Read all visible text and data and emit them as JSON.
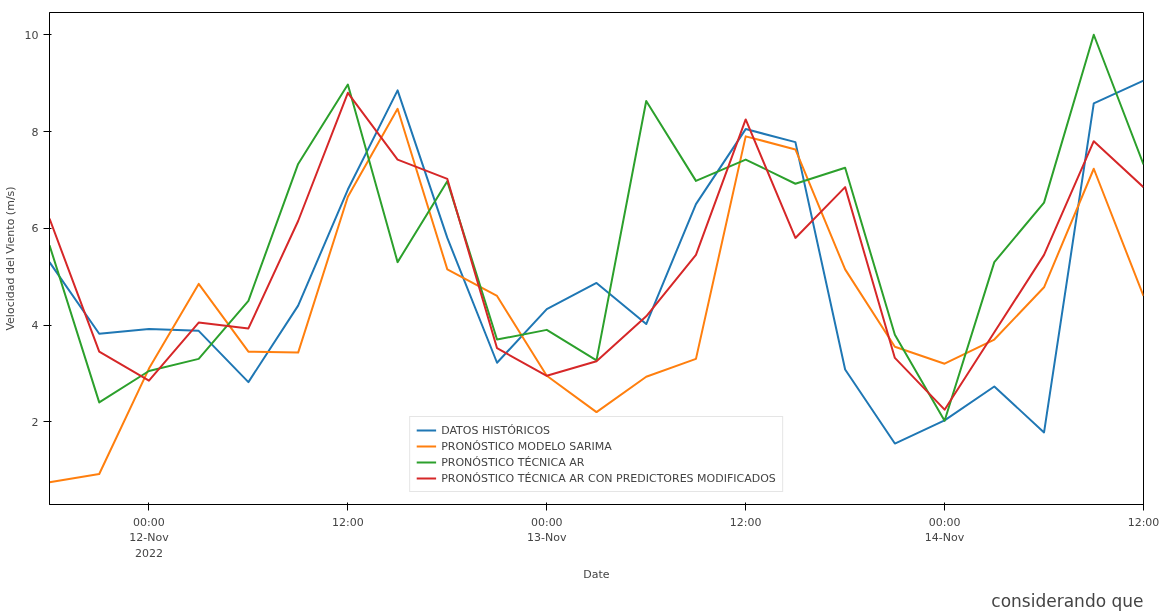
{
  "chart_data": {
    "type": "line",
    "xlabel": "Date",
    "ylabel": "Velocidad del Viento (m/s)",
    "x": [
      "2022-11-11T18:00",
      "2022-11-11T21:00",
      "2022-11-12T00:00",
      "2022-11-12T03:00",
      "2022-11-12T06:00",
      "2022-11-12T09:00",
      "2022-11-12T12:00",
      "2022-11-12T15:00",
      "2022-11-12T18:00",
      "2022-11-12T21:00",
      "2022-11-13T00:00",
      "2022-11-13T03:00",
      "2022-11-13T06:00",
      "2022-11-13T09:00",
      "2022-11-13T12:00",
      "2022-11-13T15:00",
      "2022-11-13T18:00",
      "2022-11-13T21:00",
      "2022-11-14T00:00",
      "2022-11-14T03:00",
      "2022-11-14T06:00",
      "2022-11-14T09:00",
      "2022-11-14T12:00"
    ],
    "series": [
      {
        "name": "DATOS HISTÓRICOS",
        "color": "#1f77b4",
        "values": [
          5.3,
          3.82,
          3.92,
          3.88,
          2.82,
          4.4,
          6.8,
          8.85,
          5.8,
          3.22,
          4.33,
          4.87,
          4.02,
          6.5,
          8.05,
          7.78,
          3.08,
          1.55,
          2.03,
          2.73,
          1.78,
          8.58,
          9.05
        ]
      },
      {
        "name": "PRONÓSTICO MODELO SARIMA",
        "color": "#ff7f0e",
        "values": [
          0.75,
          0.92,
          3.1,
          4.85,
          3.45,
          3.43,
          6.65,
          8.47,
          5.15,
          4.6,
          2.95,
          2.2,
          2.93,
          3.3,
          7.9,
          7.63,
          5.15,
          3.55,
          3.2,
          3.7,
          4.78,
          7.23,
          4.6
        ]
      },
      {
        "name": "PRONÓSTICO TÉCNICA AR",
        "color": "#2ca02c",
        "values": [
          5.65,
          2.4,
          3.05,
          3.3,
          4.5,
          7.33,
          8.97,
          5.3,
          6.97,
          3.7,
          3.9,
          3.27,
          8.63,
          6.98,
          7.42,
          6.92,
          7.25,
          3.8,
          2.02,
          5.3,
          6.53,
          10.0,
          7.32
        ]
      },
      {
        "name": "PRONÓSTICO TÉCNICA AR CON PREDICTORES MODIFICADOS",
        "color": "#d62728",
        "values": [
          6.2,
          3.45,
          2.85,
          4.05,
          3.93,
          6.15,
          8.8,
          7.42,
          7.02,
          3.52,
          2.95,
          3.25,
          4.18,
          5.45,
          8.25,
          5.8,
          6.85,
          3.32,
          2.25,
          3.85,
          5.45,
          7.8,
          6.85
        ]
      }
    ],
    "xlim": [
      "2022-11-11T18:00",
      "2022-11-14T12:00"
    ],
    "xticks": [
      {
        "value": "2022-11-12T00:00",
        "label": "00:00\n12-Nov\n2022"
      },
      {
        "value": "2022-11-12T12:00",
        "label": "12:00"
      },
      {
        "value": "2022-11-13T00:00",
        "label": "00:00\n13-Nov"
      },
      {
        "value": "2022-11-13T12:00",
        "label": "12:00"
      },
      {
        "value": "2022-11-14T00:00",
        "label": "00:00\n14-Nov"
      },
      {
        "value": "2022-11-14T12:00",
        "label": "12:00"
      }
    ],
    "ylim": [
      0.29,
      10.46
    ],
    "yticks": [
      2,
      4,
      6,
      8,
      10
    ],
    "grid": false,
    "legend": "bottom",
    "marker": "none",
    "line_style": "solid",
    "annotations": [
      "considerando que"
    ]
  }
}
